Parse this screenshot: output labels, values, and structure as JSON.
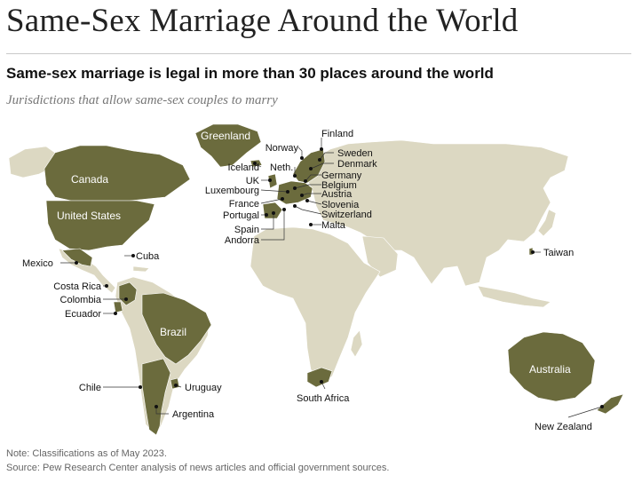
{
  "header": {
    "title": "Same-Sex Marriage Around the World",
    "subtitle": "Same-sex marriage is legal in more than 30 places around the world",
    "description": "Jurisdictions that allow same-sex couples to marry"
  },
  "footer": {
    "note": "Note: Classifications as of May 2023.",
    "source": "Source: Pew Research Center analysis of news articles and official government sources."
  },
  "legend_colors": {
    "legal": "#6b6b3d",
    "not_legal": "#dcd8c2",
    "border": "#ffffff"
  },
  "map": {
    "inside_labels": {
      "greenland": "Greenland",
      "canada": "Canada",
      "united_states": "United States",
      "brazil": "Brazil",
      "australia": "Australia"
    },
    "callouts": {
      "finland": "Finland",
      "norway": "Norway",
      "sweden": "Sweden",
      "denmark": "Denmark",
      "iceland": "Iceland",
      "neth": "Neth.",
      "germany": "Germany",
      "uk": "UK",
      "belgium": "Belgium",
      "luxembourg": "Luxembourg",
      "austria": "Austria",
      "france": "France",
      "slovenia": "Slovenia",
      "portugal": "Portugal",
      "switzerland": "Switzerland",
      "spain": "Spain",
      "malta": "Malta",
      "andorra": "Andorra",
      "cuba": "Cuba",
      "mexico": "Mexico",
      "costa_rica": "Costa Rica",
      "colombia": "Colombia",
      "ecuador": "Ecuador",
      "chile": "Chile",
      "uruguay": "Uruguay",
      "argentina": "Argentina",
      "south_africa": "South Africa",
      "taiwan": "Taiwan",
      "new_zealand": "New Zealand"
    }
  }
}
